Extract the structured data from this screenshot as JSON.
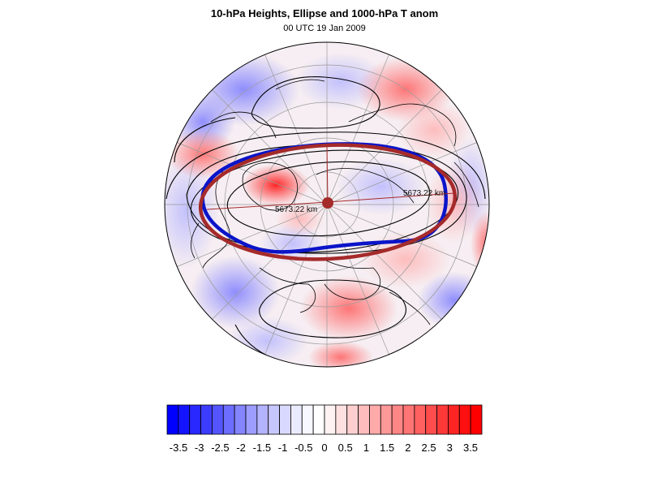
{
  "title": "10-hPa Heights, Ellipse and 1000-hPa T anom",
  "subtitle": "00 UTC 19 Jan 2009",
  "map": {
    "projection": "polar stereographic (north pole)",
    "ellipse_label_left": "5673.22 km",
    "ellipse_label_right": "5673.22 km",
    "colors": {
      "ellipse": "#a52a2a",
      "height_contour_highlight": "#0a14c8",
      "height_contours": "#000000",
      "coastline": "#000000",
      "gridlines": "#9a9a9a"
    }
  },
  "colorbar": {
    "labels": [
      "-3.5",
      "-3",
      "-2.5",
      "-2",
      "-1.5",
      "-1",
      "-0.5",
      "0",
      "0.5",
      "1",
      "1.5",
      "2",
      "2.5",
      "3",
      "3.5"
    ],
    "colors": [
      "#0000ff",
      "#1414ff",
      "#2828ff",
      "#3c3cff",
      "#5555ff",
      "#6d6dff",
      "#8585ff",
      "#9d9dff",
      "#b3b3ff",
      "#c7c7ff",
      "#d9d9ff",
      "#ebebff",
      "#f7f7ff",
      "#ffffff",
      "#fff2f2",
      "#ffe0e0",
      "#ffcfcf",
      "#ffbcbc",
      "#ffaaaa",
      "#ff9898",
      "#ff8686",
      "#ff7474",
      "#ff6060",
      "#ff4c4c",
      "#ff3838",
      "#ff2424",
      "#ff1010",
      "#ff0000"
    ]
  }
}
